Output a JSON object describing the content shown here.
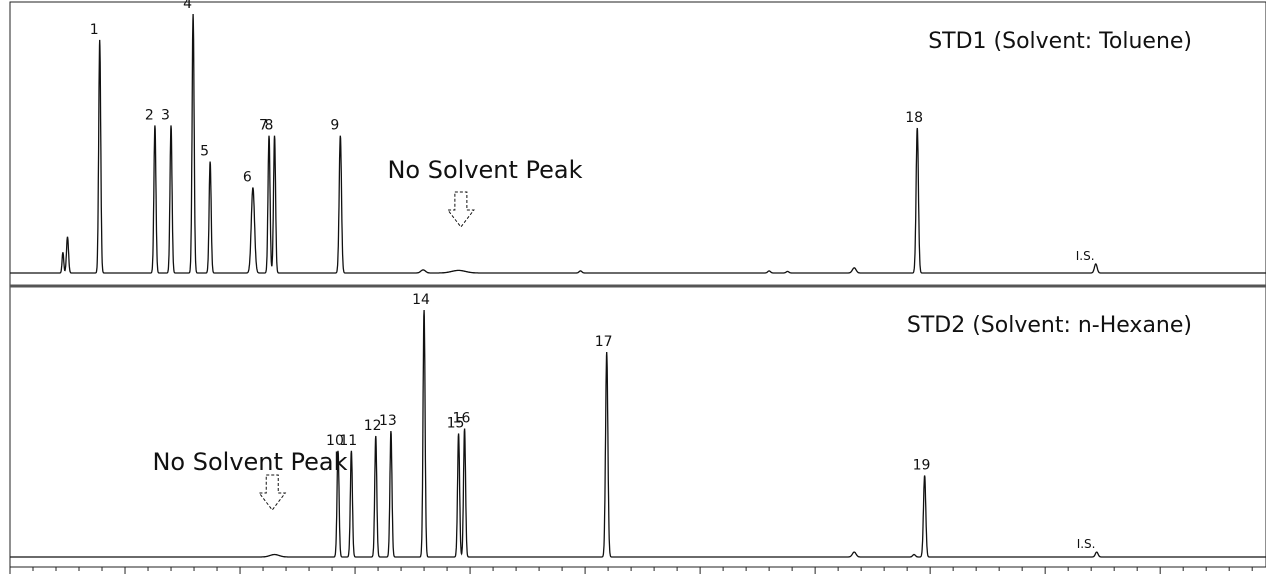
{
  "chart_data": {
    "type": "line",
    "x_unit": "min",
    "xlim": [
      0.0,
      27.3
    ],
    "x_ticks": [
      "0.0",
      "2.5",
      "5.0",
      "7.5",
      "10.0",
      "12.5",
      "15.0",
      "17.5",
      "20.0",
      "22.5",
      "25.0"
    ],
    "panels": [
      {
        "id": "std1",
        "title": "STD1 (Solvent: Toluene)",
        "annotation": "No Solvent Peak",
        "annotation_at_min": 9.8,
        "peaks": [
          {
            "t": 1.15,
            "h": 0.08,
            "w": 0.018
          },
          {
            "t": 1.25,
            "h": 0.14,
            "w": 0.022
          },
          {
            "label": "1",
            "t": 1.95,
            "h": 0.9,
            "w": 0.022
          },
          {
            "label": "2",
            "t": 3.15,
            "h": 0.57,
            "w": 0.022
          },
          {
            "label": "3",
            "t": 3.5,
            "h": 0.57,
            "w": 0.022
          },
          {
            "label": "4",
            "t": 3.98,
            "h": 1.0,
            "w": 0.022
          },
          {
            "label": "5",
            "t": 4.35,
            "h": 0.43,
            "w": 0.022
          },
          {
            "label": "6",
            "t": 5.28,
            "h": 0.33,
            "w": 0.035
          },
          {
            "label": "7",
            "t": 5.63,
            "h": 0.53,
            "w": 0.022
          },
          {
            "label": "8",
            "t": 5.75,
            "h": 0.53,
            "w": 0.022
          },
          {
            "label": "9",
            "t": 7.18,
            "h": 0.53,
            "w": 0.025
          },
          {
            "t": 8.98,
            "h": 0.012,
            "w": 0.05
          },
          {
            "t": 9.75,
            "h": 0.01,
            "w": 0.15
          },
          {
            "t": 12.4,
            "h": 0.008,
            "w": 0.03
          },
          {
            "t": 16.5,
            "h": 0.008,
            "w": 0.03
          },
          {
            "t": 16.9,
            "h": 0.006,
            "w": 0.03
          },
          {
            "t": 18.35,
            "h": 0.02,
            "w": 0.04
          },
          {
            "label": "18",
            "t": 19.72,
            "h": 0.56,
            "w": 0.025
          },
          {
            "label": "I.S.",
            "t": 23.6,
            "h": 0.035,
            "w": 0.03
          }
        ]
      },
      {
        "id": "std2",
        "title": "STD2 (Solvent: n-Hexane)",
        "annotation": "No Solvent Peak",
        "annotation_at_min": 5.7,
        "peaks": [
          {
            "t": 5.75,
            "h": 0.01,
            "w": 0.1
          },
          {
            "label": "10",
            "t": 7.13,
            "h": 0.43,
            "w": 0.022
          },
          {
            "label": "11",
            "t": 7.42,
            "h": 0.43,
            "w": 0.022
          },
          {
            "label": "12",
            "t": 7.95,
            "h": 0.49,
            "w": 0.022
          },
          {
            "label": "13",
            "t": 8.28,
            "h": 0.51,
            "w": 0.022
          },
          {
            "label": "14",
            "t": 9.0,
            "h": 1.0,
            "w": 0.022
          },
          {
            "label": "15",
            "t": 9.75,
            "h": 0.5,
            "w": 0.022
          },
          {
            "label": "16",
            "t": 9.88,
            "h": 0.52,
            "w": 0.022
          },
          {
            "label": "17",
            "t": 12.97,
            "h": 0.83,
            "w": 0.025
          },
          {
            "t": 18.35,
            "h": 0.02,
            "w": 0.04
          },
          {
            "t": 19.65,
            "h": 0.01,
            "w": 0.03
          },
          {
            "label": "19",
            "t": 19.88,
            "h": 0.33,
            "w": 0.025
          },
          {
            "label": "I.S.",
            "t": 23.62,
            "h": 0.02,
            "w": 0.03
          }
        ]
      }
    ]
  }
}
